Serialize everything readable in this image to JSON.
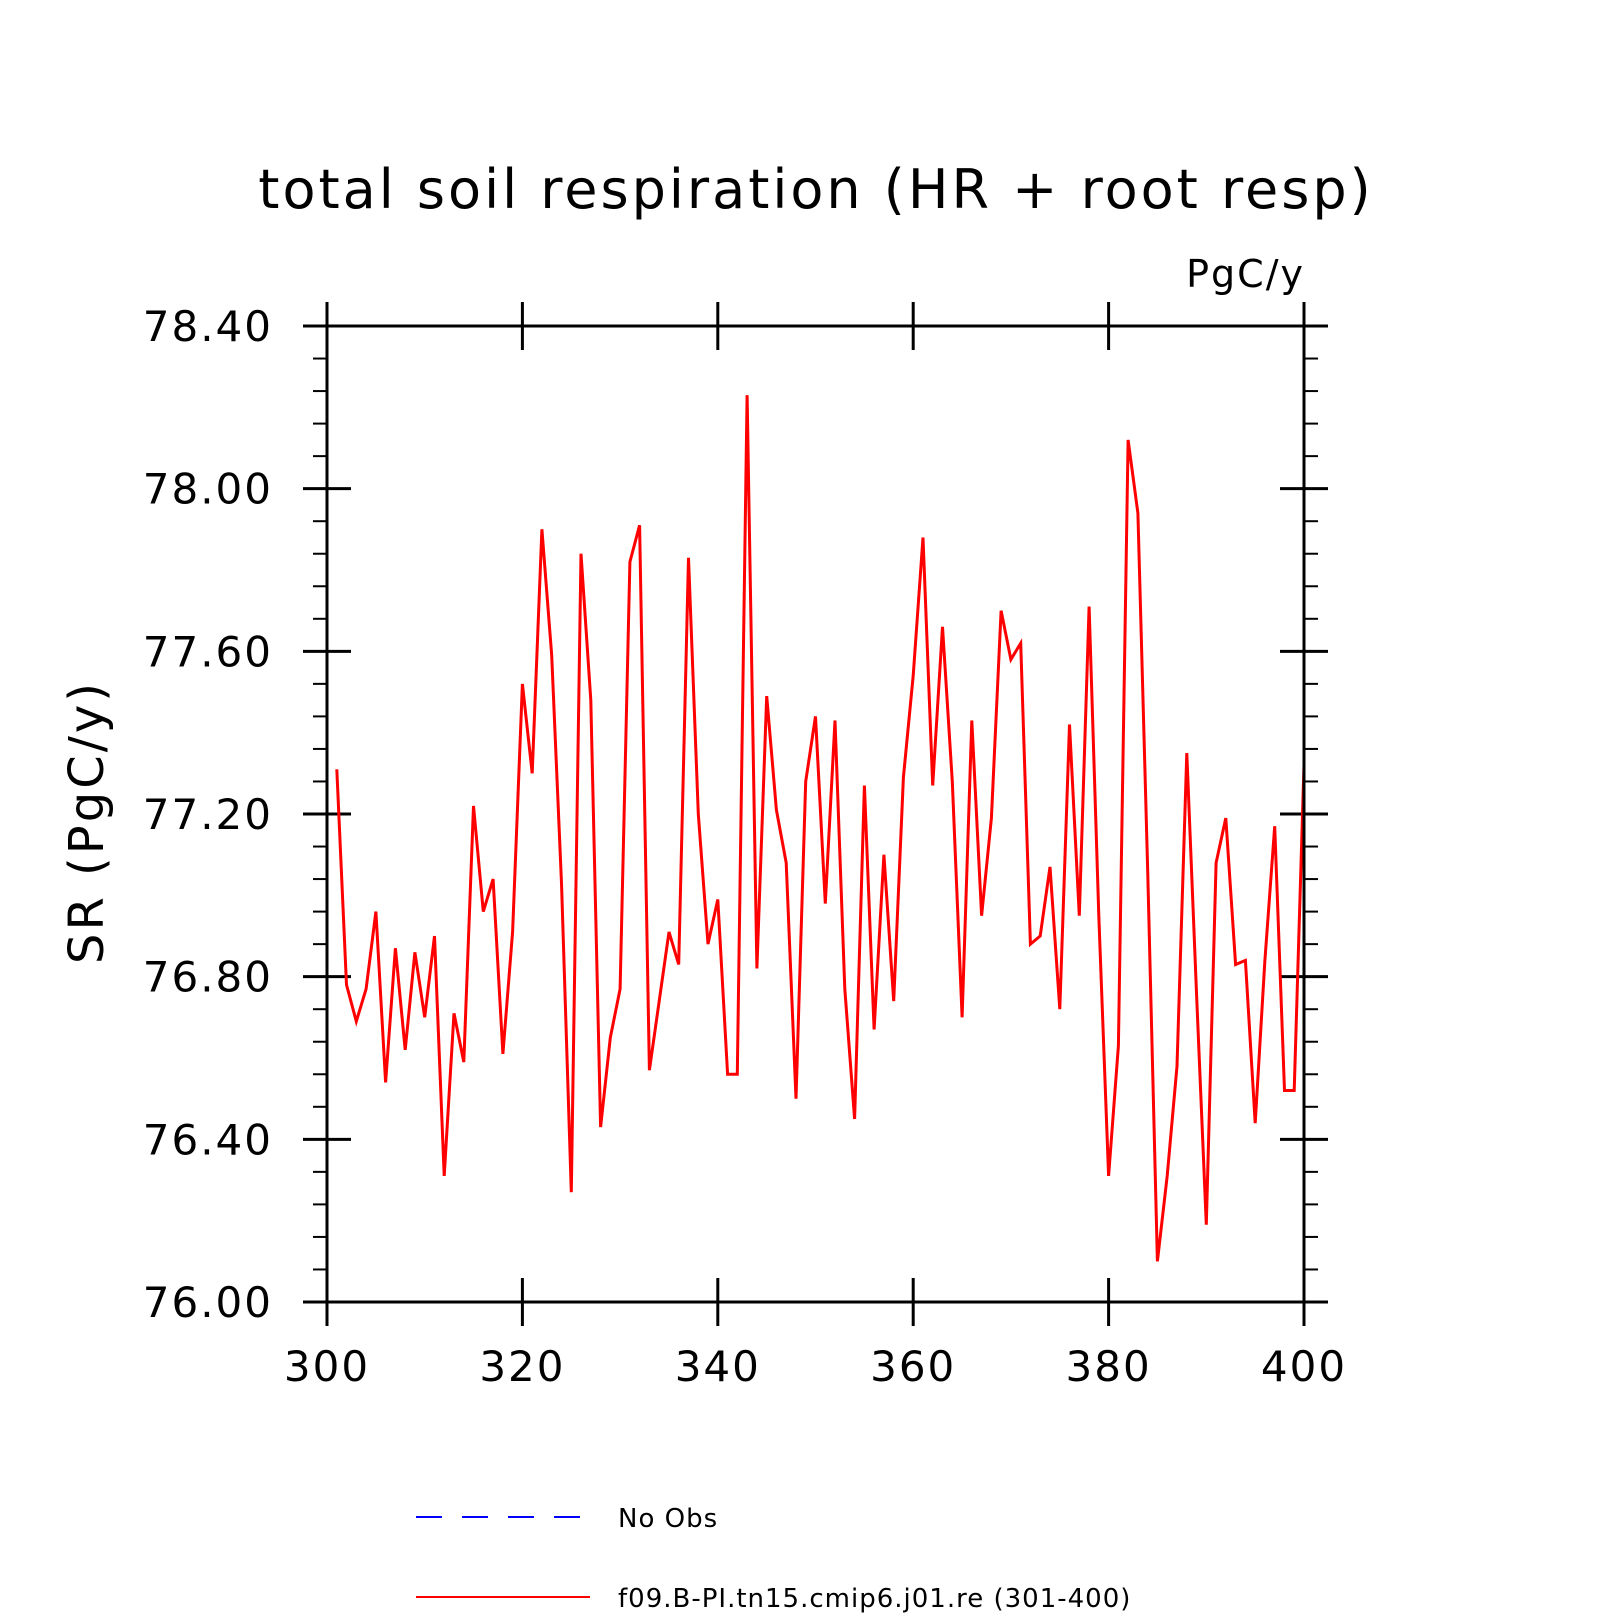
{
  "chart_data": {
    "type": "line",
    "title": "total soil respiration (HR + root resp)",
    "units": "PgC/y",
    "ylabel": "SR  (PgC/y)",
    "xlabel": "",
    "xlim": [
      300,
      400
    ],
    "ylim": [
      76.0,
      78.4
    ],
    "xticks": [
      300,
      320,
      340,
      360,
      380,
      400
    ],
    "xtick_labels": [
      "300",
      "320",
      "340",
      "360",
      "380",
      "400"
    ],
    "yticks": [
      76.0,
      76.4,
      76.8,
      77.2,
      77.6,
      78.0,
      78.4
    ],
    "ytick_labels": [
      "76.00",
      "76.40",
      "76.80",
      "77.20",
      "77.60",
      "78.00",
      "78.40"
    ],
    "grid": false,
    "legend_position": "bottom",
    "series": [
      {
        "name": "No Obs",
        "color": "#0000ff",
        "style": "dashed",
        "x": [],
        "y": []
      },
      {
        "name": "f09.B-PI.tn15.cmip6.j01.re (301-400)",
        "color": "#ff0000",
        "style": "solid",
        "x": [
          301,
          302,
          303,
          304,
          305,
          306,
          307,
          308,
          309,
          310,
          311,
          312,
          313,
          314,
          315,
          316,
          317,
          318,
          319,
          320,
          321,
          322,
          323,
          324,
          325,
          326,
          327,
          328,
          329,
          330,
          331,
          332,
          333,
          334,
          335,
          336,
          337,
          338,
          339,
          340,
          341,
          342,
          343,
          344,
          345,
          346,
          347,
          348,
          349,
          350,
          351,
          352,
          353,
          354,
          355,
          356,
          357,
          358,
          359,
          360,
          361,
          362,
          363,
          364,
          365,
          366,
          367,
          368,
          369,
          370,
          371,
          372,
          373,
          374,
          375,
          376,
          377,
          378,
          379,
          380,
          381,
          382,
          383,
          384,
          385,
          386,
          387,
          388,
          389,
          390,
          391,
          392,
          393,
          394,
          395,
          396,
          397,
          398,
          399,
          400
        ],
        "y": [
          77.31,
          76.78,
          76.69,
          76.77,
          76.96,
          76.54,
          76.87,
          76.62,
          76.86,
          76.7,
          76.9,
          76.31,
          76.71,
          76.59,
          77.22,
          76.96,
          77.04,
          76.61,
          76.91,
          77.52,
          77.3,
          77.9,
          77.59,
          77.03,
          76.27,
          77.84,
          77.48,
          76.43,
          76.65,
          76.77,
          77.82,
          77.91,
          76.57,
          76.74,
          76.91,
          76.83,
          77.83,
          77.2,
          76.88,
          76.99,
          76.56,
          76.56,
          78.23,
          76.82,
          77.49,
          77.21,
          77.08,
          76.5,
          77.28,
          77.44,
          76.98,
          77.43,
          76.77,
          76.45,
          77.27,
          76.67,
          77.1,
          76.74,
          77.29,
          77.54,
          77.88,
          77.27,
          77.66,
          77.28,
          76.7,
          77.43,
          76.95,
          77.19,
          77.7,
          77.58,
          77.62,
          76.88,
          76.9,
          77.07,
          76.72,
          77.42,
          76.95,
          77.71,
          76.95,
          76.31,
          76.63,
          78.12,
          77.94,
          77.06,
          76.1,
          76.31,
          76.58,
          77.35,
          76.76,
          76.19,
          77.08,
          77.19,
          76.83,
          76.84,
          76.44,
          76.84,
          77.17,
          76.52,
          76.52,
          77.32
        ]
      }
    ]
  }
}
